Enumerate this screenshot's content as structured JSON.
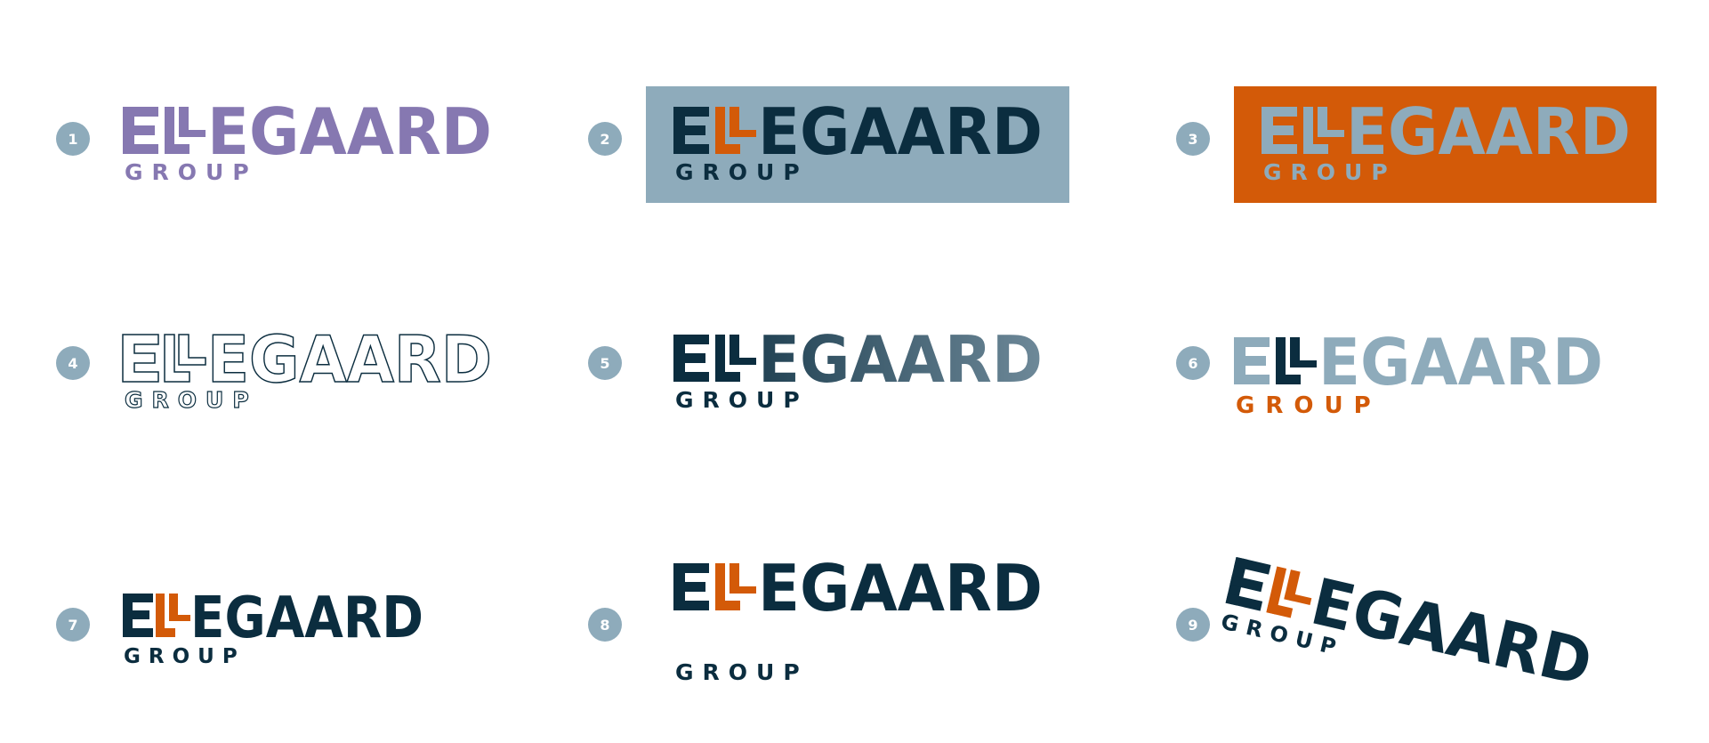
{
  "logo": {
    "word_tail": "EGAARD",
    "group": "GROUP"
  },
  "variants": [
    {
      "number": "1",
      "name": "purple"
    },
    {
      "number": "2",
      "name": "grey-panel"
    },
    {
      "number": "3",
      "name": "orange-panel"
    },
    {
      "number": "4",
      "name": "outline"
    },
    {
      "number": "5",
      "name": "gradient"
    },
    {
      "number": "6",
      "name": "grey-orange"
    },
    {
      "number": "7",
      "name": "navy-orange-small"
    },
    {
      "number": "8",
      "name": "navy-orange-spaced"
    },
    {
      "number": "9",
      "name": "rotated"
    }
  ],
  "colors": {
    "navy": "#0b2d3f",
    "orange": "#d35a08",
    "grey_blue": "#8eabbb",
    "purple": "#8678b1",
    "badge": "#8eabbb",
    "white": "#ffffff"
  }
}
